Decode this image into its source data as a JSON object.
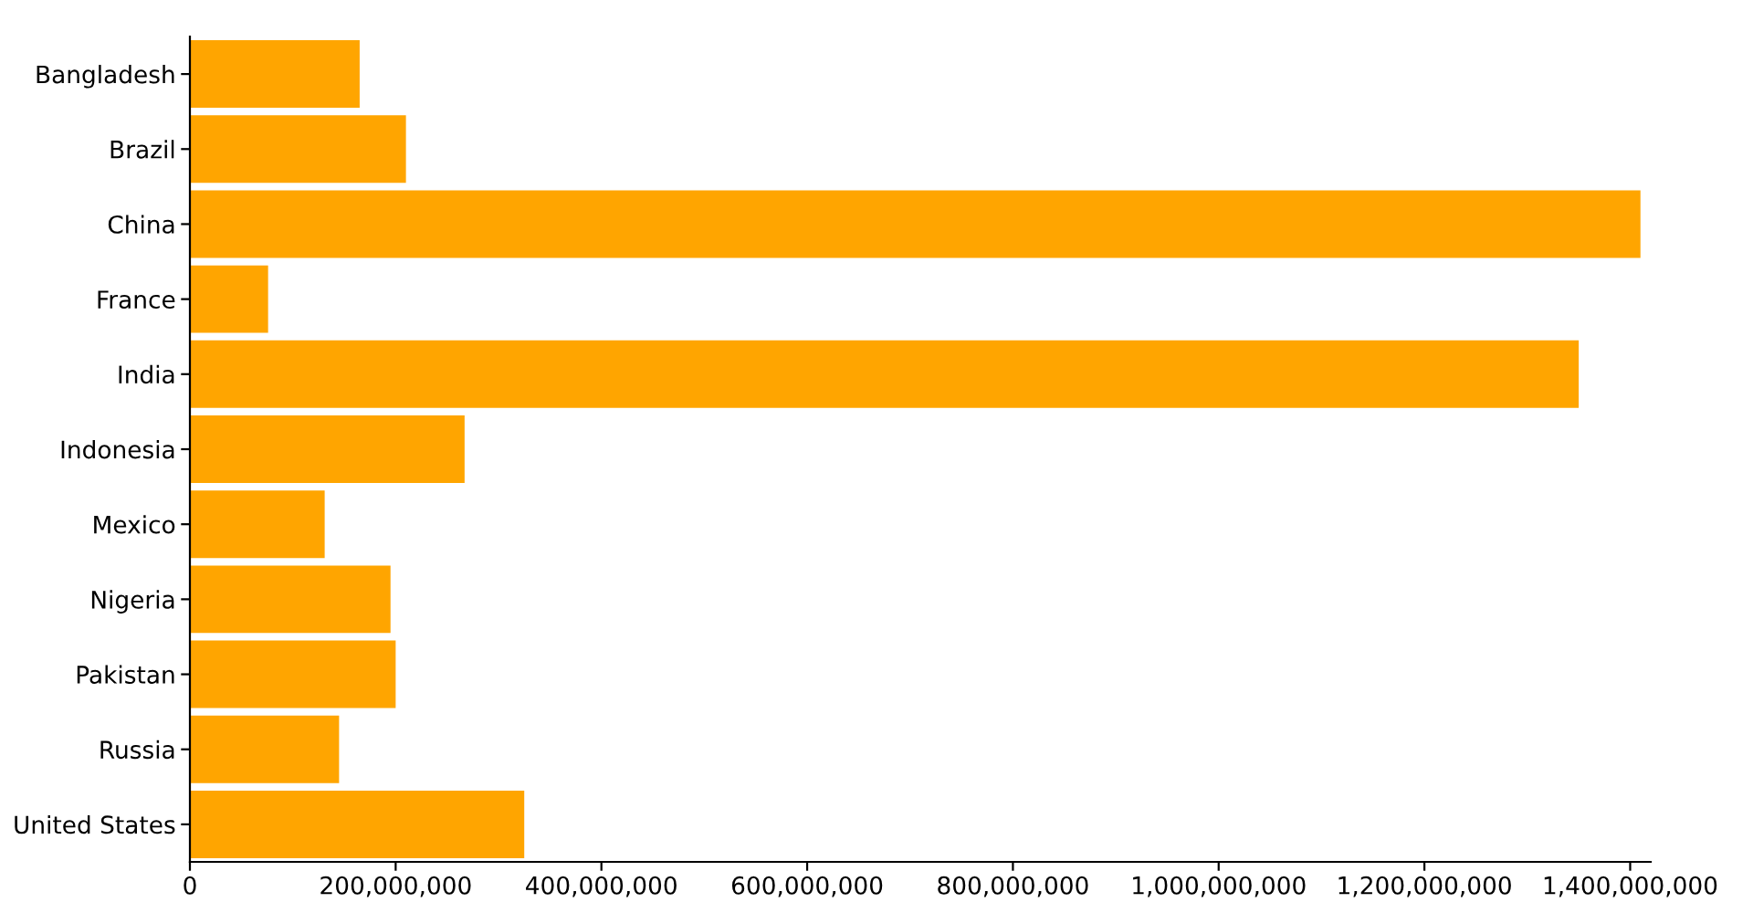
{
  "chart_data": {
    "type": "bar",
    "orientation": "horizontal",
    "categories": [
      "Bangladesh",
      "Brazil",
      "China",
      "France",
      "India",
      "Indonesia",
      "Mexico",
      "Nigeria",
      "Pakistan",
      "Russia",
      "United States"
    ],
    "values": [
      165000000,
      210000000,
      1410000000,
      76000000,
      1350000000,
      267000000,
      131000000,
      195000000,
      200000000,
      145000000,
      325000000
    ],
    "color": "#ffa500",
    "xlim": [
      0,
      1420000000
    ],
    "xticks": [
      {
        "value": 0,
        "label": "0"
      },
      {
        "value": 200000000,
        "label": "200,000,000"
      },
      {
        "value": 400000000,
        "label": "400,000,000"
      },
      {
        "value": 600000000,
        "label": "600,000,000"
      },
      {
        "value": 800000000,
        "label": "800,000,000"
      },
      {
        "value": 1000000000,
        "label": "1,000,000,000"
      },
      {
        "value": 1200000000,
        "label": "1,200,000,000"
      },
      {
        "value": 1400000000,
        "label": "1,400,000,000"
      }
    ],
    "grid": false
  }
}
